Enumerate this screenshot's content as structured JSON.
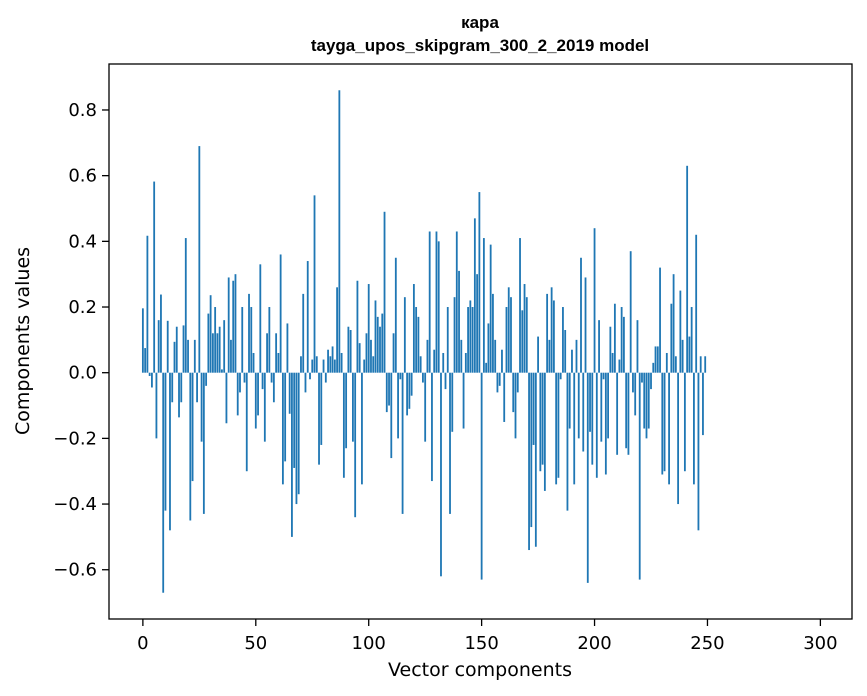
{
  "chart_data": {
    "type": "bar",
    "title": "кара",
    "subtitle": "tayga_upos_skipgram_300_2_2019 model",
    "xlabel": "Vector components",
    "ylabel": "Components values",
    "xlim": [
      -15,
      314
    ],
    "ylim": [
      -0.75,
      0.94
    ],
    "xticks": [
      0,
      50,
      100,
      150,
      200,
      250,
      300
    ],
    "yticks": [
      -0.6,
      -0.4,
      -0.2,
      0.0,
      0.2,
      0.4,
      0.6,
      0.8
    ],
    "ytick_labels": [
      "−0.6",
      "−0.4",
      "−0.2",
      "0.0",
      "0.2",
      "0.4",
      "0.6",
      "0.8"
    ],
    "grid": false,
    "bar_color": "#1f77b4",
    "values": [
      0.196,
      0.075,
      0.417,
      -0.01,
      -0.045,
      0.582,
      -0.2,
      0.16,
      0.238,
      -0.67,
      -0.42,
      0.158,
      -0.48,
      -0.09,
      0.094,
      0.14,
      -0.136,
      -0.09,
      0.144,
      0.41,
      0.1,
      -0.45,
      -0.33,
      0.1,
      -0.09,
      0.69,
      -0.21,
      -0.43,
      -0.04,
      0.18,
      0.236,
      0.12,
      0.2,
      0.12,
      0.14,
      0.01,
      0.16,
      -0.154,
      0.29,
      0.1,
      0.28,
      0.3,
      -0.13,
      -0.06,
      0.2,
      -0.03,
      -0.3,
      0.24,
      0.2,
      0.06,
      -0.17,
      -0.13,
      0.33,
      -0.05,
      -0.21,
      0.12,
      0.2,
      -0.03,
      -0.09,
      0.12,
      0.06,
      0.36,
      -0.34,
      -0.27,
      0.15,
      -0.125,
      -0.5,
      -0.29,
      -0.4,
      -0.37,
      0.05,
      0.24,
      -0.06,
      0.34,
      -0.02,
      0.04,
      0.54,
      0.05,
      -0.28,
      -0.22,
      0.04,
      -0.03,
      0.07,
      0.05,
      0.08,
      0.04,
      0.26,
      0.86,
      0.06,
      -0.32,
      -0.23,
      0.14,
      0.13,
      -0.21,
      -0.44,
      0.28,
      0.09,
      -0.34,
      0.04,
      0.12,
      0.27,
      0.1,
      0.05,
      0.22,
      0.17,
      0.14,
      0.18,
      0.49,
      -0.12,
      -0.1,
      -0.26,
      0.12,
      0.35,
      -0.2,
      -0.02,
      -0.43,
      0.23,
      -0.13,
      -0.11,
      -0.07,
      0.27,
      0.2,
      0.17,
      0.05,
      -0.03,
      -0.21,
      0.1,
      0.43,
      -0.33,
      0.07,
      0.43,
      0.4,
      -0.62,
      0.06,
      -0.05,
      0.2,
      -0.43,
      -0.18,
      0.23,
      0.43,
      0.31,
      0.1,
      -0.17,
      0.06,
      0.2,
      0.22,
      0.2,
      0.47,
      0.3,
      0.55,
      -0.63,
      0.41,
      0.03,
      0.15,
      0.39,
      0.24,
      0.1,
      -0.06,
      -0.04,
      0.07,
      -0.15,
      0.2,
      0.26,
      0.23,
      -0.12,
      -0.2,
      -0.06,
      0.41,
      0.19,
      0.27,
      0.23,
      -0.54,
      -0.47,
      -0.22,
      -0.53,
      0.11,
      -0.3,
      -0.28,
      -0.36,
      0.24,
      0.1,
      0.26,
      0.22,
      -0.34,
      -0.32,
      -0.02,
      0.2,
      0.13,
      -0.42,
      -0.17,
      0.07,
      -0.34,
      0.1,
      -0.2,
      0.35,
      -0.24,
      0.29,
      -0.64,
      -0.18,
      -0.28,
      0.44,
      -0.32,
      0.16,
      -0.21,
      -0.02,
      -0.31,
      -0.2,
      0.14,
      0.06,
      0.21,
      -0.25,
      0.04,
      0.2,
      0.17,
      -0.23,
      -0.25,
      0.37,
      -0.06,
      -0.13,
      0.16,
      -0.63,
      -0.03,
      -0.17,
      -0.2,
      -0.17,
      -0.05,
      0.03,
      0.08,
      0.08,
      0.32,
      -0.31,
      -0.3,
      0.06,
      -0.34,
      0.21,
      0.3,
      0.05,
      -0.4,
      0.25,
      0.1,
      -0.3,
      0.63,
      0.11,
      0.2,
      -0.34,
      0.42,
      -0.48,
      0.05,
      -0.19,
      0.05
    ]
  }
}
